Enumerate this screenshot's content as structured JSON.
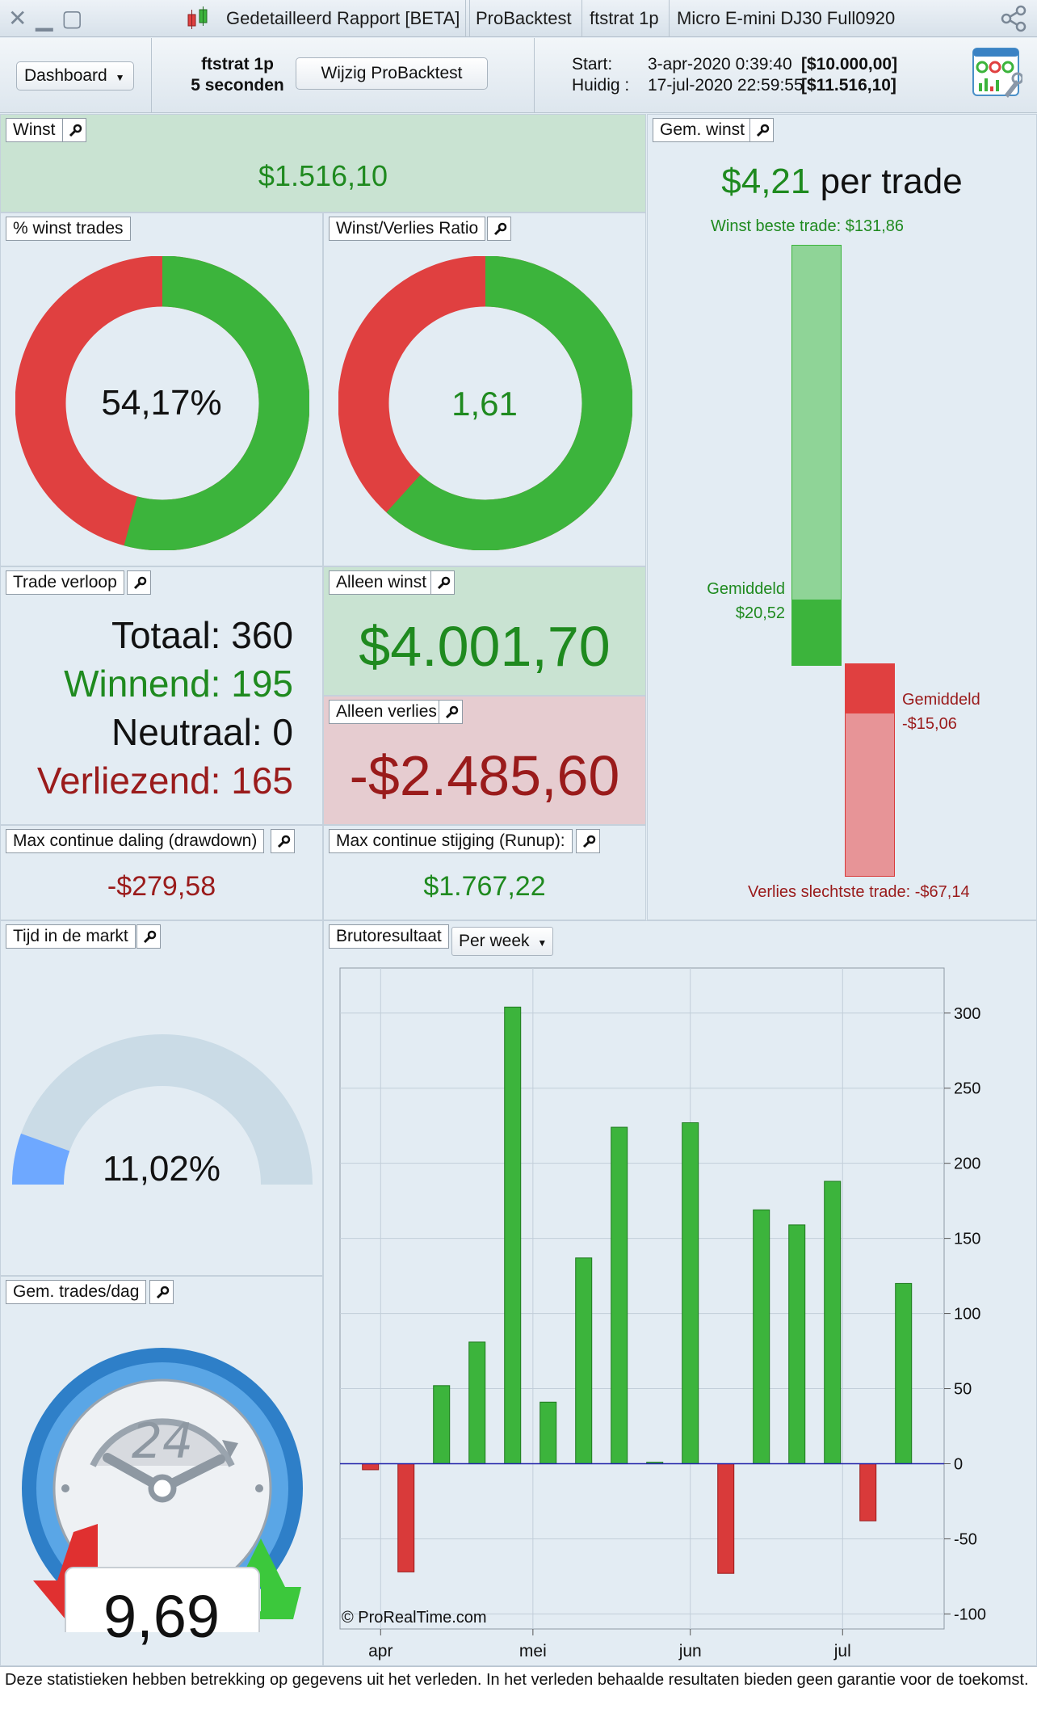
{
  "titlebar": {
    "tabs": [
      "Gedetailleerd Rapport [BETA]",
      "ProBacktest",
      "ftstrat 1p",
      "Micro E-mini DJ30 Full0920"
    ]
  },
  "toolbar": {
    "dashboard_label": "Dashboard",
    "strategy_name": "ftstrat 1p",
    "timeframe": "5 seconden",
    "edit_button": "Wijzig ProBacktest",
    "start_label": "Start:",
    "start_date": "3-apr-2020 0:39:40",
    "start_capital": "[$10.000,00]",
    "current_label": "Huidig :",
    "current_date": "17-jul-2020 22:59:55",
    "current_capital": "[$11.516,10]"
  },
  "winst": {
    "label": "Winst",
    "value": "$1.516,10"
  },
  "pct_winst": {
    "label": "% winst trades",
    "value": "54,17%",
    "fraction": 0.5417
  },
  "wv_ratio": {
    "label": "Winst/Verlies Ratio",
    "value": "1,61",
    "fraction": 0.617
  },
  "gem_winst": {
    "label": "Gem. winst",
    "value": "$4,21",
    "suffix": " per trade",
    "best_label": "Winst beste trade: $131,86",
    "avg_win_label": "Gemiddeld",
    "avg_win_value": "$20,52",
    "avg_loss_label": "Gemiddeld",
    "avg_loss_value": "-$15,06",
    "worst_label": "Verlies slechtste trade: -$67,14",
    "best": 131.86,
    "avg_win": 20.52,
    "avg_loss": -15.06,
    "worst": -67.14
  },
  "trade_verloop": {
    "label": "Trade verloop",
    "total": "Totaal: 360",
    "winning": "Winnend: 195",
    "neutral": "Neutraal: 0",
    "losing": "Verliezend: 165"
  },
  "alleen_winst": {
    "label": "Alleen winst",
    "value": "$4.001,70"
  },
  "alleen_verlies": {
    "label": "Alleen verlies",
    "value": "-$2.485,60"
  },
  "drawdown": {
    "label": "Max continue daling (drawdown)",
    "value": "-$279,58"
  },
  "runup": {
    "label": "Max continue stijging (Runup):",
    "value": "$1.767,22"
  },
  "tijd_markt": {
    "label": "Tijd in de markt",
    "value": "11,02%",
    "fraction": 0.1102
  },
  "trades_dag": {
    "label": "Gem. trades/dag",
    "clock_label": "24",
    "value": "9,69"
  },
  "bruto": {
    "label": "Brutoresultaat",
    "period": "Per week",
    "watermark": "© ProRealTime.com"
  },
  "chart_data": {
    "type": "bar",
    "x": [
      "2020-03-30",
      "2020-04-06",
      "2020-04-13",
      "2020-04-20",
      "2020-04-27",
      "2020-05-04",
      "2020-05-11",
      "2020-05-18",
      "2020-05-25",
      "2020-06-01",
      "2020-06-08",
      "2020-06-15",
      "2020-06-22",
      "2020-06-29",
      "2020-07-06",
      "2020-07-13"
    ],
    "values": [
      -4,
      -72,
      52,
      81,
      304,
      41,
      137,
      224,
      1,
      227,
      -73,
      169,
      159,
      188,
      -38,
      120
    ],
    "xticks": [
      "apr",
      "mei",
      "jun",
      "jul"
    ],
    "yticks": [
      300,
      250,
      200,
      150,
      100,
      50,
      0,
      -50,
      -100
    ],
    "ylim": [
      -110,
      330
    ],
    "positive_color": "#3cb43c",
    "negative_color": "#d93a3a",
    "grid": true
  },
  "footer": {
    "text": "Deze statistieken hebben betrekking op gegevens uit het verleden. In het verleden behaalde resultaten bieden geen garantie voor de toekomst."
  },
  "colors": {
    "green": "#3cb43c",
    "red": "#e04040",
    "text_green": "#1f8a1f",
    "text_red": "#b01c1c"
  }
}
